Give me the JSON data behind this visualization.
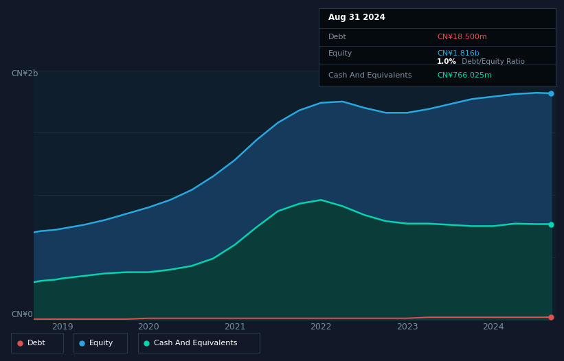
{
  "bg_color": "#111827",
  "chart_bg": "#0f1e2d",
  "grid_color": "#1a2e40",
  "y_label_top": "CN¥2b",
  "y_label_bottom": "CN¥0",
  "x_ticks": [
    "2019",
    "2020",
    "2021",
    "2022",
    "2023",
    "2024"
  ],
  "equity_color": "#29a8e0",
  "equity_fill": "#163a5c",
  "cash_color": "#00d4b0",
  "cash_fill": "#0a3d3a",
  "debt_color": "#e05050",
  "tooltip_title": "Aug 31 2024",
  "tooltip_debt_value": "CN¥18.500m",
  "tooltip_equity_value": "CN¥1.816b",
  "tooltip_ratio_bold": "1.0%",
  "tooltip_ratio_rest": " Debt/Equity Ratio",
  "tooltip_cash_value": "CN¥766.025m",
  "legend_labels": [
    "Debt",
    "Equity",
    "Cash And Equivalents"
  ],
  "legend_colors": [
    "#e05050",
    "#29a8e0",
    "#00d4b0"
  ],
  "x_data": [
    2018.67,
    2018.75,
    2018.92,
    2019.0,
    2019.25,
    2019.5,
    2019.75,
    2020.0,
    2020.25,
    2020.5,
    2020.75,
    2021.0,
    2021.25,
    2021.5,
    2021.75,
    2022.0,
    2022.25,
    2022.5,
    2022.75,
    2023.0,
    2023.25,
    2023.5,
    2023.75,
    2024.0,
    2024.25,
    2024.5,
    2024.67
  ],
  "equity_y": [
    0.7,
    0.71,
    0.72,
    0.73,
    0.76,
    0.8,
    0.85,
    0.9,
    0.96,
    1.04,
    1.15,
    1.28,
    1.44,
    1.58,
    1.68,
    1.74,
    1.75,
    1.7,
    1.66,
    1.66,
    1.69,
    1.73,
    1.77,
    1.79,
    1.81,
    1.82,
    1.816
  ],
  "cash_y": [
    0.3,
    0.31,
    0.32,
    0.33,
    0.35,
    0.37,
    0.38,
    0.38,
    0.4,
    0.43,
    0.49,
    0.6,
    0.74,
    0.87,
    0.93,
    0.96,
    0.91,
    0.84,
    0.79,
    0.77,
    0.77,
    0.76,
    0.75,
    0.75,
    0.77,
    0.766,
    0.766
  ],
  "debt_y": [
    0.003,
    0.003,
    0.003,
    0.003,
    0.003,
    0.003,
    0.003,
    0.01,
    0.01,
    0.01,
    0.01,
    0.01,
    0.01,
    0.01,
    0.01,
    0.01,
    0.01,
    0.01,
    0.01,
    0.01,
    0.018,
    0.018,
    0.018,
    0.018,
    0.018,
    0.018,
    0.0185
  ],
  "ylim": [
    0,
    2.0
  ],
  "xlim": [
    2018.67,
    2024.72
  ]
}
